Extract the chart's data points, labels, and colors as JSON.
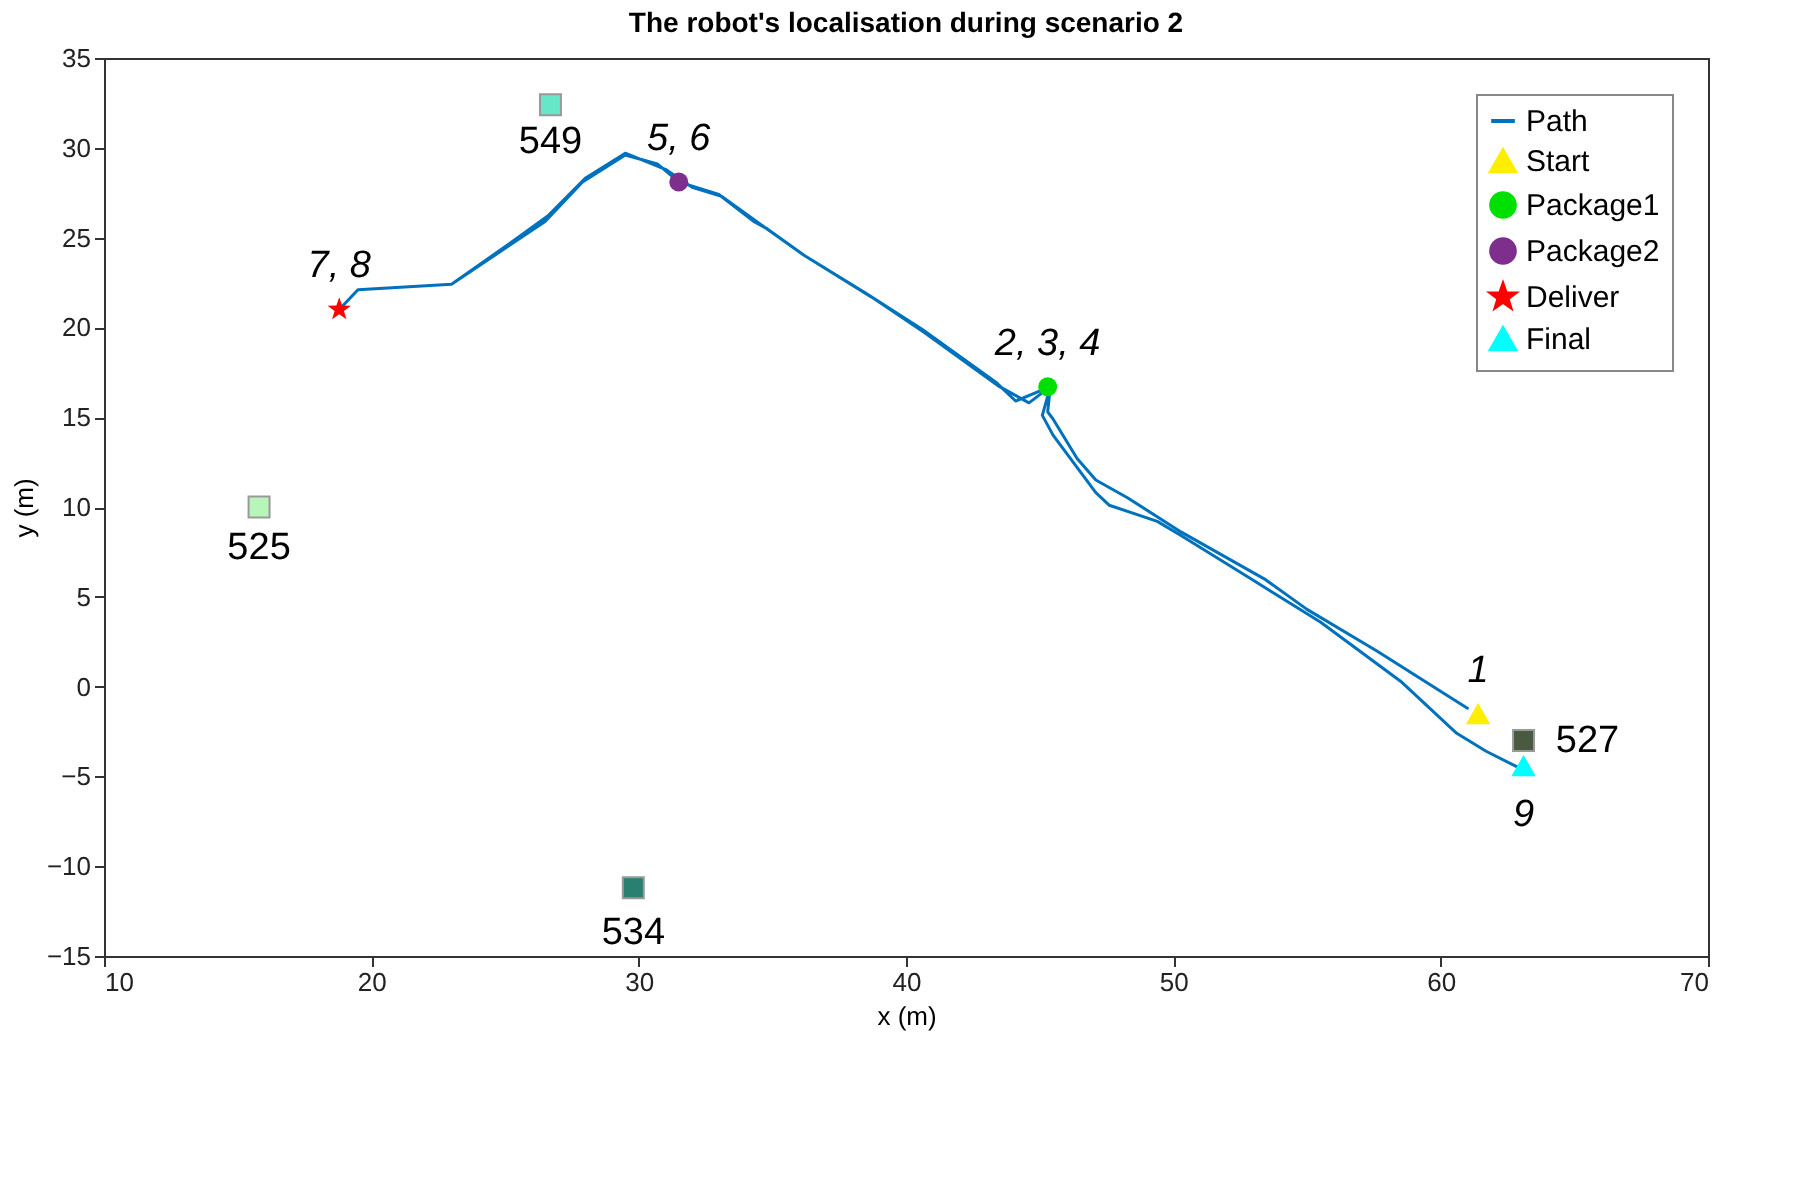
{
  "chart_data": {
    "type": "line",
    "title": "The robot's localisation during scenario 2",
    "xlabel": "x (m)",
    "ylabel": "y (m)",
    "xlim": [
      10,
      70
    ],
    "ylim": [
      -15,
      35
    ],
    "xticks": [
      10,
      20,
      30,
      40,
      50,
      60,
      70
    ],
    "yticks": [
      -15,
      -10,
      -5,
      0,
      5,
      10,
      15,
      20,
      25,
      30,
      35
    ],
    "grid": false,
    "legend": "top right",
    "line_style": "solid",
    "series": [
      {
        "name": "Path",
        "color": "#0072bd",
        "x": [
          61.0,
          57.6,
          55.0,
          53.4,
          50.3,
          48.3,
          47.1,
          46.4,
          45.5,
          45.3,
          45.4,
          44.1,
          43.4,
          40.6,
          38.5,
          36.2,
          34.8,
          34.3,
          33.0,
          31.5,
          30.7,
          29.5,
          27.9,
          26.5,
          25.1,
          23.0,
          19.5,
          18.8,
          19.5,
          23.0,
          25.2,
          26.6,
          28.0,
          29.5,
          31.0,
          32.0,
          33.1,
          34.5,
          36.2,
          38.7,
          40.7,
          43.5,
          44.6,
          45.4,
          45.1,
          45.5,
          47.1,
          47.6,
          49.4,
          50.3,
          52.9,
          55.5,
          58.5,
          60.6,
          61.7,
          62.9
        ],
        "values": [
          -1.2,
          2.0,
          4.3,
          6.0,
          8.6,
          10.5,
          11.5,
          12.7,
          14.9,
          15.3,
          16.7,
          15.9,
          16.9,
          19.9,
          21.9,
          24.0,
          25.5,
          25.9,
          27.4,
          28.1,
          29.1,
          29.6,
          28.1,
          25.9,
          24.5,
          22.4,
          22.1,
          21.0,
          22.1,
          22.4,
          24.7,
          26.2,
          28.3,
          29.7,
          28.8,
          27.8,
          27.3,
          25.8,
          24.0,
          21.7,
          19.7,
          16.7,
          15.8,
          16.7,
          15.1,
          14.0,
          10.8,
          10.1,
          9.2,
          8.4,
          6.0,
          3.6,
          0.3,
          -2.6,
          -3.6,
          -4.5
        ]
      },
      {
        "name": "Start",
        "type": "scatter",
        "marker": "triangle",
        "color": "#ffee00",
        "x": [
          61.4
        ],
        "values": [
          -1.5
        ]
      },
      {
        "name": "Package1",
        "type": "scatter",
        "marker": "circle",
        "color": "#00e000",
        "x": [
          45.3
        ],
        "values": [
          16.7
        ]
      },
      {
        "name": "Package2",
        "type": "scatter",
        "marker": "circle",
        "color": "#7e2f8e",
        "x": [
          31.5
        ],
        "values": [
          28.1
        ]
      },
      {
        "name": "Deliver",
        "type": "scatter",
        "marker": "star",
        "color": "#ff0000",
        "x": [
          18.8
        ],
        "values": [
          21.0
        ]
      },
      {
        "name": "Final",
        "type": "scatter",
        "marker": "triangle",
        "color": "#00ffff",
        "x": [
          63.1
        ],
        "values": [
          -4.4
        ]
      },
      {
        "type": "scatter",
        "marker": "square",
        "colors": [
          "#66e8c8",
          "#b8f5b8",
          "#2a8070",
          "#4a5a40"
        ],
        "x": [
          26.7,
          15.8,
          29.8,
          63.1
        ],
        "values": [
          32.4,
          10.0,
          -11.2,
          -3.0
        ]
      }
    ],
    "annotations": [
      {
        "text": "1",
        "x": 61.4,
        "y": -1.5
      },
      {
        "text": "2, 3, 4",
        "x": 45.3,
        "y": 16.7
      },
      {
        "text": "5, 6",
        "x": 31.5,
        "y": 28.1
      },
      {
        "text": "7, 8",
        "x": 18.8,
        "y": 21.0
      },
      {
        "text": "9",
        "x": 63.1,
        "y": -4.4
      },
      {
        "text": "549",
        "x": 26.7,
        "y": 32.4
      },
      {
        "text": "525",
        "x": 15.8,
        "y": 10.0
      },
      {
        "text": "534",
        "x": 29.8,
        "y": -11.2
      },
      {
        "text": "527",
        "x": 63.1,
        "y": -3.0
      }
    ]
  }
}
